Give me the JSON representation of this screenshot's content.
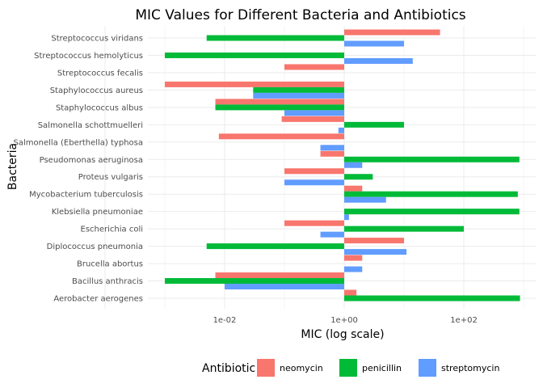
{
  "chart_data": {
    "type": "bar",
    "orientation": "horizontal",
    "title": "MIC Values for Different Bacteria and Antibiotics",
    "xlabel": "MIC (log scale)",
    "ylabel": "Bacteria",
    "x_scale": "log10",
    "xlim": [
      0.0001,
      1500
    ],
    "x_ticks": [
      0.01,
      1,
      100
    ],
    "x_tick_labels": [
      "1e-02",
      "1e+00",
      "1e+02"
    ],
    "grid": true,
    "legend_title": "Antibiotic",
    "legend_position": "bottom",
    "categories": [
      "Aerobacter aerogenes",
      "Bacillus anthracis",
      "Brucella abortus",
      "Diplococcus pneumonia",
      "Escherichia coli",
      "Klebsiella pneumoniae",
      "Mycobacterium tuberculosis",
      "Proteus vulgaris",
      "Pseudomonas aeruginosa",
      "Salmonella (Eberthella) typhosa",
      "Salmonella schottmuelleri",
      "Staphylococcus albus",
      "Staphylococcus aureus",
      "Streptococcus fecalis",
      "Streptococcus hemolyticus",
      "Streptococcus viridans"
    ],
    "series": [
      {
        "name": "neomycin",
        "color": "#F8766D",
        "values": [
          1.6,
          0.007,
          2,
          10,
          0.1,
          null,
          2,
          0.1,
          0.4,
          0.008,
          0.09,
          0.007,
          0.001,
          0.1,
          null,
          40
        ]
      },
      {
        "name": "penicillin",
        "color": "#00BA38",
        "values": [
          870,
          0.001,
          null,
          0.005,
          100,
          850,
          800,
          3,
          850,
          null,
          10,
          0.007,
          0.03,
          null,
          0.001,
          0.005
        ]
      },
      {
        "name": "streptomycin",
        "color": "#619CFF",
        "values": [
          null,
          0.01,
          2,
          11,
          0.4,
          1.2,
          5,
          0.1,
          2,
          0.4,
          0.8,
          0.1,
          0.03,
          null,
          14,
          10
        ]
      }
    ]
  }
}
